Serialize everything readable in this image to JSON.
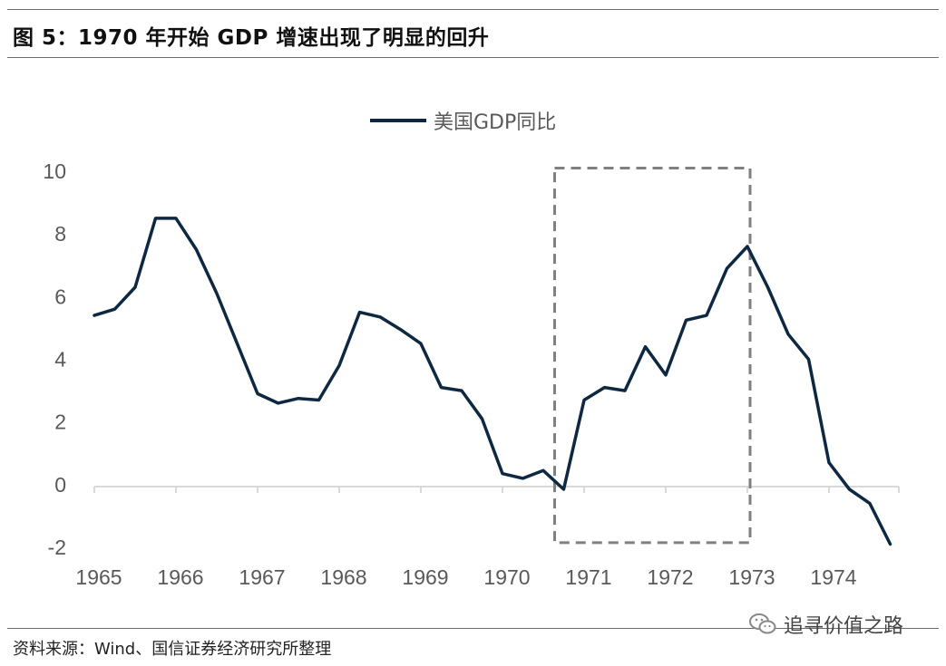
{
  "figure": {
    "title": "图 5：1970 年开始 GDP 增速出现了明显的回升",
    "source": "资料来源：Wind、国信证券经济研究所整理",
    "watermark": "追寻价值之路",
    "watermark_icon": "wechat-icon"
  },
  "chart_data": {
    "type": "line",
    "title": "",
    "xlabel": "",
    "ylabel": "",
    "ylim": [
      -2,
      10
    ],
    "xlim": [
      1965.0,
      1974.83
    ],
    "yticks": [
      -2,
      0,
      2,
      4,
      6,
      8,
      10
    ],
    "xticks": [
      "1965",
      "1966",
      "1967",
      "1968",
      "1969",
      "1970",
      "1971",
      "1972",
      "1973",
      "1974"
    ],
    "grid": false,
    "legend_position": "top-center",
    "series": [
      {
        "name": "美国GDP同比",
        "color": "#0e2841",
        "points": [
          [
            1965.0,
            5.4
          ],
          [
            1965.25,
            5.6
          ],
          [
            1965.5,
            6.3
          ],
          [
            1965.75,
            8.5
          ],
          [
            1966.0,
            8.5
          ],
          [
            1966.25,
            7.5
          ],
          [
            1966.5,
            6.1
          ],
          [
            1966.75,
            4.5
          ],
          [
            1967.0,
            2.9
          ],
          [
            1967.25,
            2.6
          ],
          [
            1967.5,
            2.75
          ],
          [
            1967.75,
            2.7
          ],
          [
            1968.0,
            3.8
          ],
          [
            1968.25,
            5.5
          ],
          [
            1968.5,
            5.35
          ],
          [
            1968.75,
            4.95
          ],
          [
            1969.0,
            4.5
          ],
          [
            1969.25,
            3.1
          ],
          [
            1969.5,
            3.0
          ],
          [
            1969.75,
            2.1
          ],
          [
            1970.0,
            0.35
          ],
          [
            1970.25,
            0.2
          ],
          [
            1970.5,
            0.45
          ],
          [
            1970.75,
            -0.15
          ],
          [
            1971.0,
            2.7
          ],
          [
            1971.25,
            3.1
          ],
          [
            1971.5,
            3.0
          ],
          [
            1971.75,
            4.4
          ],
          [
            1972.0,
            3.5
          ],
          [
            1972.25,
            5.25
          ],
          [
            1972.5,
            5.4
          ],
          [
            1972.75,
            6.9
          ],
          [
            1973.0,
            7.6
          ],
          [
            1973.25,
            6.3
          ],
          [
            1973.5,
            4.8
          ],
          [
            1973.75,
            4.0
          ],
          [
            1974.0,
            0.7
          ],
          [
            1974.25,
            -0.15
          ],
          [
            1974.5,
            -0.6
          ],
          [
            1974.75,
            -1.9
          ]
        ]
      }
    ],
    "highlight_box": {
      "x_range": [
        1970.75,
        1973.0
      ],
      "y_range": [
        -1.85,
        10.1
      ],
      "style": "dashed",
      "color": "#808080"
    }
  }
}
